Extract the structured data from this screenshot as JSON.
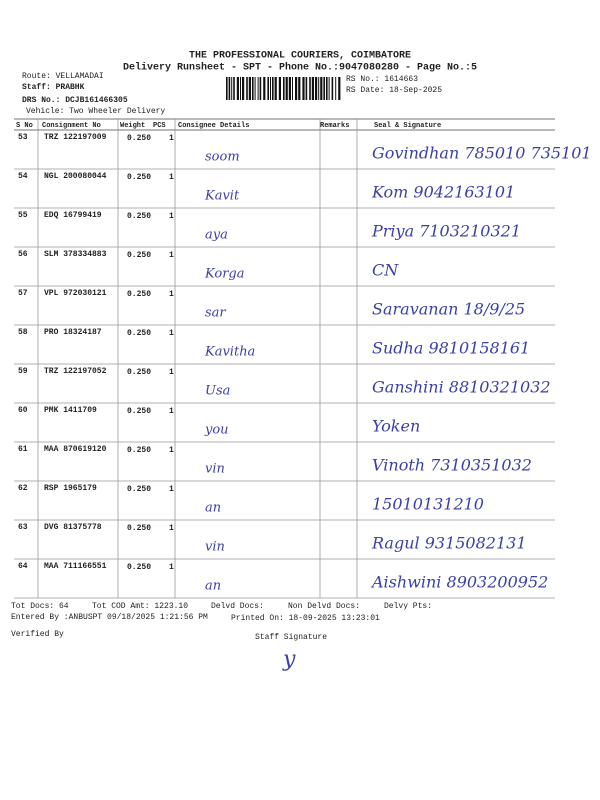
{
  "header": {
    "company": "THE PROFESSIONAL COURIERS, COIMBATORE",
    "subtitle": "Delivery Runsheet - SPT - Phone No.:9047080280 - Page No.:5",
    "route": "Route: VELLAMADAI",
    "staff": "Staff: PRABHK",
    "drs_no": "DRS No.: DCJB161466305",
    "vehicle": "Vehicle: Two Wheeler Delivery",
    "rs_no": "RS No.: 1614663",
    "rs_date": "RS Date: 18-Sep-2025"
  },
  "table": {
    "columns": [
      "S No",
      "Consignment No",
      "Weight",
      "PCS",
      "Consignee Details",
      "Remarks",
      "Seal & Signature"
    ],
    "rows": [
      {
        "sno": 53,
        "consignment": "TRZ 122197009",
        "weight": "0.250",
        "pcs": 1,
        "consignee": "soom",
        "seal": "Govindhan 785010 735101"
      },
      {
        "sno": 54,
        "consignment": "NGL 200080044",
        "weight": "0.250",
        "pcs": 1,
        "consignee": "Kavit",
        "seal": "Kom 9042163101"
      },
      {
        "sno": 55,
        "consignment": "EDQ 16799419",
        "weight": "0.250",
        "pcs": 1,
        "consignee": "aya",
        "seal": "Priya 7103210321"
      },
      {
        "sno": 56,
        "consignment": "SLM 378334883",
        "weight": "0.250",
        "pcs": 1,
        "consignee": "Korga",
        "seal": "CN"
      },
      {
        "sno": 57,
        "consignment": "VPL 972030121",
        "weight": "0.250",
        "pcs": 1,
        "consignee": "sar",
        "seal": "Saravanan 18/9/25"
      },
      {
        "sno": 58,
        "consignment": "PRO 18324187",
        "weight": "0.250",
        "pcs": 1,
        "consignee": "Kavitha",
        "seal": "Sudha 9810158161"
      },
      {
        "sno": 59,
        "consignment": "TRZ 122197052",
        "weight": "0.250",
        "pcs": 1,
        "consignee": "Usa",
        "seal": "Ganshini 8810321032"
      },
      {
        "sno": 60,
        "consignment": "PMK 1411709",
        "weight": "0.250",
        "pcs": 1,
        "consignee": "you",
        "seal": "Yoken"
      },
      {
        "sno": 61,
        "consignment": "MAA 870619120",
        "weight": "0.250",
        "pcs": 1,
        "consignee": "vin",
        "seal": "Vinoth 7310351032"
      },
      {
        "sno": 62,
        "consignment": "RSP 1965179",
        "weight": "0.250",
        "pcs": 1,
        "consignee": "an",
        "seal": "15010131210"
      },
      {
        "sno": 63,
        "consignment": "DVG 81375778",
        "weight": "0.250",
        "pcs": 1,
        "consignee": "vin",
        "seal": "Ragul 9315082131"
      },
      {
        "sno": 64,
        "consignment": "MAA 711166551",
        "weight": "0.250",
        "pcs": 1,
        "consignee": "an",
        "seal": "Aishwini 8903200952"
      }
    ]
  },
  "footer": {
    "tot_docs": "Tot Docs: 64",
    "tot_cod": "Tot COD Amt: 1223.10",
    "delvd": "Delvd Docs:",
    "non_delvd": "Non Delvd Docs:",
    "delvy_pts": "Delvy Pts:",
    "entered": "Entered By :ANBUSPT 09/18/2025 1:21:56 PM",
    "printed": "Printed On: 18-09-2025 13:23:01",
    "verified": "Verified By",
    "staff_signature": "Staff Signature",
    "signature": "y"
  }
}
